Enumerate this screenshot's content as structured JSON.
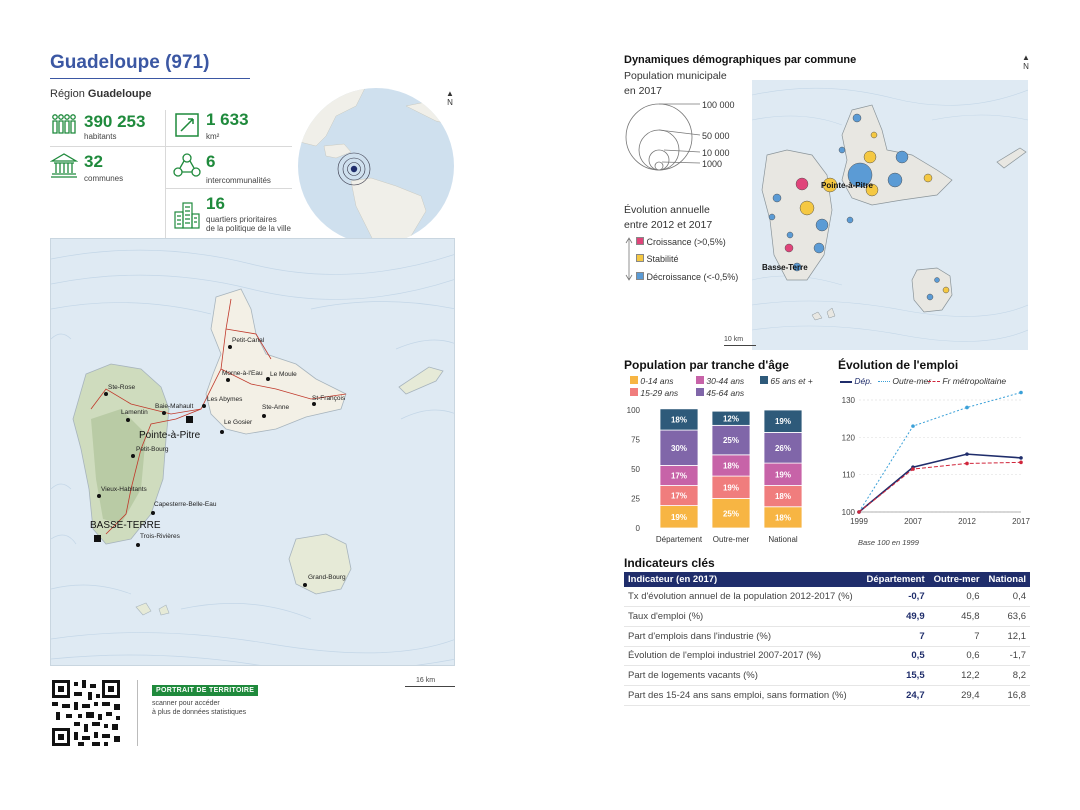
{
  "header": {
    "title": "Guadeloupe (971)",
    "region_prefix": "Région",
    "region_name": "Guadeloupe"
  },
  "stats": [
    {
      "id": "habitants",
      "value": "390 253",
      "label": "habitants",
      "icon": "people-icon"
    },
    {
      "id": "area",
      "value": "1 633",
      "label": "km²",
      "icon": "area-icon"
    },
    {
      "id": "communes",
      "value": "32",
      "label": "communes",
      "icon": "town-hall-icon"
    },
    {
      "id": "intercom",
      "value": "6",
      "label": "intercommunalités",
      "icon": "network-icon"
    },
    {
      "id": "qpv",
      "value": "16",
      "label": "quartiers prioritaires",
      "label2": "de la politique de la ville",
      "icon": "buildings-icon"
    }
  ],
  "north_label": "N",
  "main_map": {
    "scale_label": "16 km",
    "places": [
      {
        "name": "Petit-Canal"
      },
      {
        "name": "Morne-à-l'Eau"
      },
      {
        "name": "Le Moule"
      },
      {
        "name": "Ste-Rose"
      },
      {
        "name": "Les Abymes"
      },
      {
        "name": "Baie-Mahault"
      },
      {
        "name": "Lamentin"
      },
      {
        "name": "Ste-Anne"
      },
      {
        "name": "St-François"
      },
      {
        "name": "Le Gosier"
      },
      {
        "name": "Pointe-à-Pitre"
      },
      {
        "name": "Petit-Bourg"
      },
      {
        "name": "Vieux-Habitants"
      },
      {
        "name": "Capesterre-Belle-Eau"
      },
      {
        "name": "BASSE-TERRE"
      },
      {
        "name": "Trois-Rivières"
      },
      {
        "name": "Grand-Bourg"
      }
    ]
  },
  "footer": {
    "portrait_label": "PORTRAIT DE TERRITOIRE",
    "portrait_sub1": "scanner pour accéder",
    "portrait_sub2": "à plus de données statistiques"
  },
  "demo": {
    "title": "Dynamiques démographiques par commune",
    "pop_title": "Population municipale",
    "pop_sub": "en 2017",
    "circle_labels": [
      "100 000",
      "50 000",
      "10 000",
      "1000"
    ],
    "evo_title": "Évolution annuelle",
    "evo_sub": "entre 2012 et 2017",
    "evo_items": [
      {
        "label": "Croissance (>0,5%)",
        "color": "#e0447a"
      },
      {
        "label": "Stabilité",
        "color": "#f5c842"
      },
      {
        "label": "Décroissance (<-0,5%)",
        "color": "#5b9bd5"
      }
    ],
    "map_labels": [
      "Pointe-à-Pitre",
      "Basse-Terre"
    ],
    "scale_label": "10 km"
  },
  "age_chart": {
    "title": "Population par tranche d'âge",
    "legend": [
      {
        "label": "0-14 ans",
        "color": "#f7b543"
      },
      {
        "label": "30-44 ans",
        "color": "#c763a8"
      },
      {
        "label": "65 ans et +",
        "color": "#2e5a7a"
      },
      {
        "label": "15-29 ans",
        "color": "#f07d7d"
      },
      {
        "label": "45-64 ans",
        "color": "#8066a9"
      }
    ]
  },
  "chart_data": [
    {
      "type": "bar",
      "stacked": true,
      "title": "Population par tranche d'âge",
      "categories": [
        "Département",
        "Outre-mer",
        "National"
      ],
      "ylim": [
        0,
        100
      ],
      "yticks": [
        0,
        25,
        50,
        75,
        100
      ],
      "series": [
        {
          "name": "0-14 ans",
          "values": [
            19,
            25,
            18
          ],
          "color": "#f7b543"
        },
        {
          "name": "15-29 ans",
          "values": [
            17,
            19,
            18
          ],
          "color": "#f07d7d"
        },
        {
          "name": "30-44 ans",
          "values": [
            17,
            18,
            19
          ],
          "color": "#c763a8"
        },
        {
          "name": "45-64 ans",
          "values": [
            30,
            25,
            26
          ],
          "color": "#8066a9"
        },
        {
          "name": "65 ans et +",
          "values": [
            18,
            12,
            19
          ],
          "color": "#2e5a7a"
        }
      ]
    },
    {
      "type": "line",
      "title": "Évolution de l'emploi",
      "x": [
        "1999",
        "2007",
        "2012",
        "2017"
      ],
      "ylim": [
        100,
        130
      ],
      "yticks": [
        100,
        110,
        120,
        130
      ],
      "note": "Base 100 en 1999",
      "series": [
        {
          "name": "Dép.",
          "values": [
            100,
            112,
            115.5,
            114.5
          ],
          "color": "#1f2d6b",
          "dash": "solid"
        },
        {
          "name": "Outre-mer",
          "values": [
            100,
            123,
            128,
            132
          ],
          "color": "#3aa0d8",
          "dash": "dotted"
        },
        {
          "name": "Fr métropolitaine",
          "values": [
            100,
            111.5,
            113,
            113.3
          ],
          "color": "#d0263b",
          "dash": "dashed"
        }
      ]
    }
  ],
  "indicators": {
    "title": "Indicateurs clés",
    "headers": [
      "Indicateur (en 2017)",
      "Département",
      "Outre-mer",
      "National"
    ],
    "rows": [
      [
        "Tx d'évolution annuel de la population 2012-2017 (%)",
        "-0,7",
        "0,6",
        "0,4"
      ],
      [
        "Taux d'emploi (%)",
        "49,9",
        "45,8",
        "63,6"
      ],
      [
        "Part d'emplois dans l'industrie (%)",
        "7",
        "7",
        "12,1"
      ],
      [
        "Évolution de l'emploi industriel 2007-2017 (%)",
        "0,5",
        "0,6",
        "-1,7"
      ],
      [
        "Part de logements vacants (%)",
        "15,5",
        "12,2",
        "8,2"
      ],
      [
        "Part des 15-24 ans sans emploi, sans formation (%)",
        "24,7",
        "29,4",
        "16,8"
      ]
    ]
  }
}
